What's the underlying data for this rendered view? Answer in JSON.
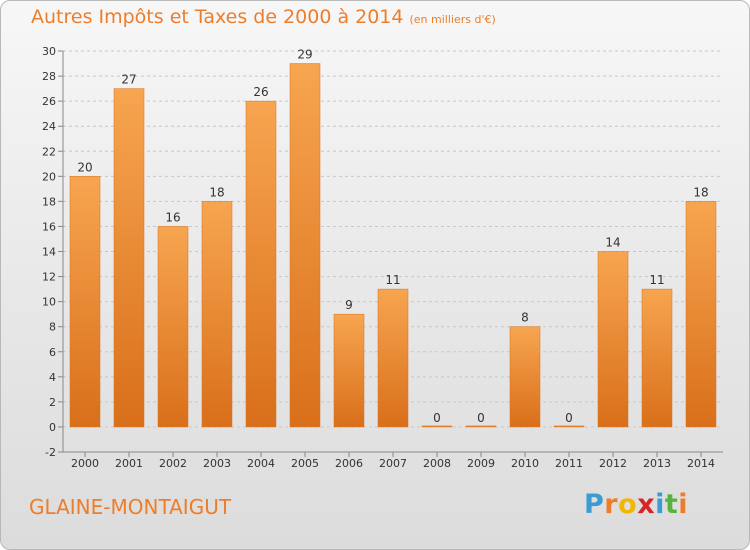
{
  "header": {
    "title": "Autres Impôts et Taxes de 2000 à 2014",
    "subtitle": "(en milliers d'€)"
  },
  "footer": {
    "place": "GLAINE-MONTAIGUT",
    "brand_letters": [
      "P",
      "r",
      "o",
      "x",
      "i",
      "t",
      "i"
    ],
    "brand_colors": [
      "#3a9bd5",
      "#ee7d2b",
      "#f2b705",
      "#d62728",
      "#3a9bd5",
      "#57b33e",
      "#ee7d2b"
    ]
  },
  "chart_data": {
    "type": "bar",
    "categories": [
      "2000",
      "2001",
      "2002",
      "2003",
      "2004",
      "2005",
      "2006",
      "2007",
      "2008",
      "2009",
      "2010",
      "2011",
      "2012",
      "2013",
      "2014"
    ],
    "values": [
      20,
      27,
      16,
      18,
      26,
      29,
      9,
      11,
      0,
      0,
      8,
      0,
      14,
      11,
      18
    ],
    "ylim": [
      -2,
      30
    ],
    "yticks": [
      -2,
      0,
      2,
      4,
      6,
      8,
      10,
      12,
      14,
      16,
      18,
      20,
      22,
      24,
      26,
      28,
      30
    ],
    "grid": true,
    "bar_color": "#ee8a35"
  }
}
